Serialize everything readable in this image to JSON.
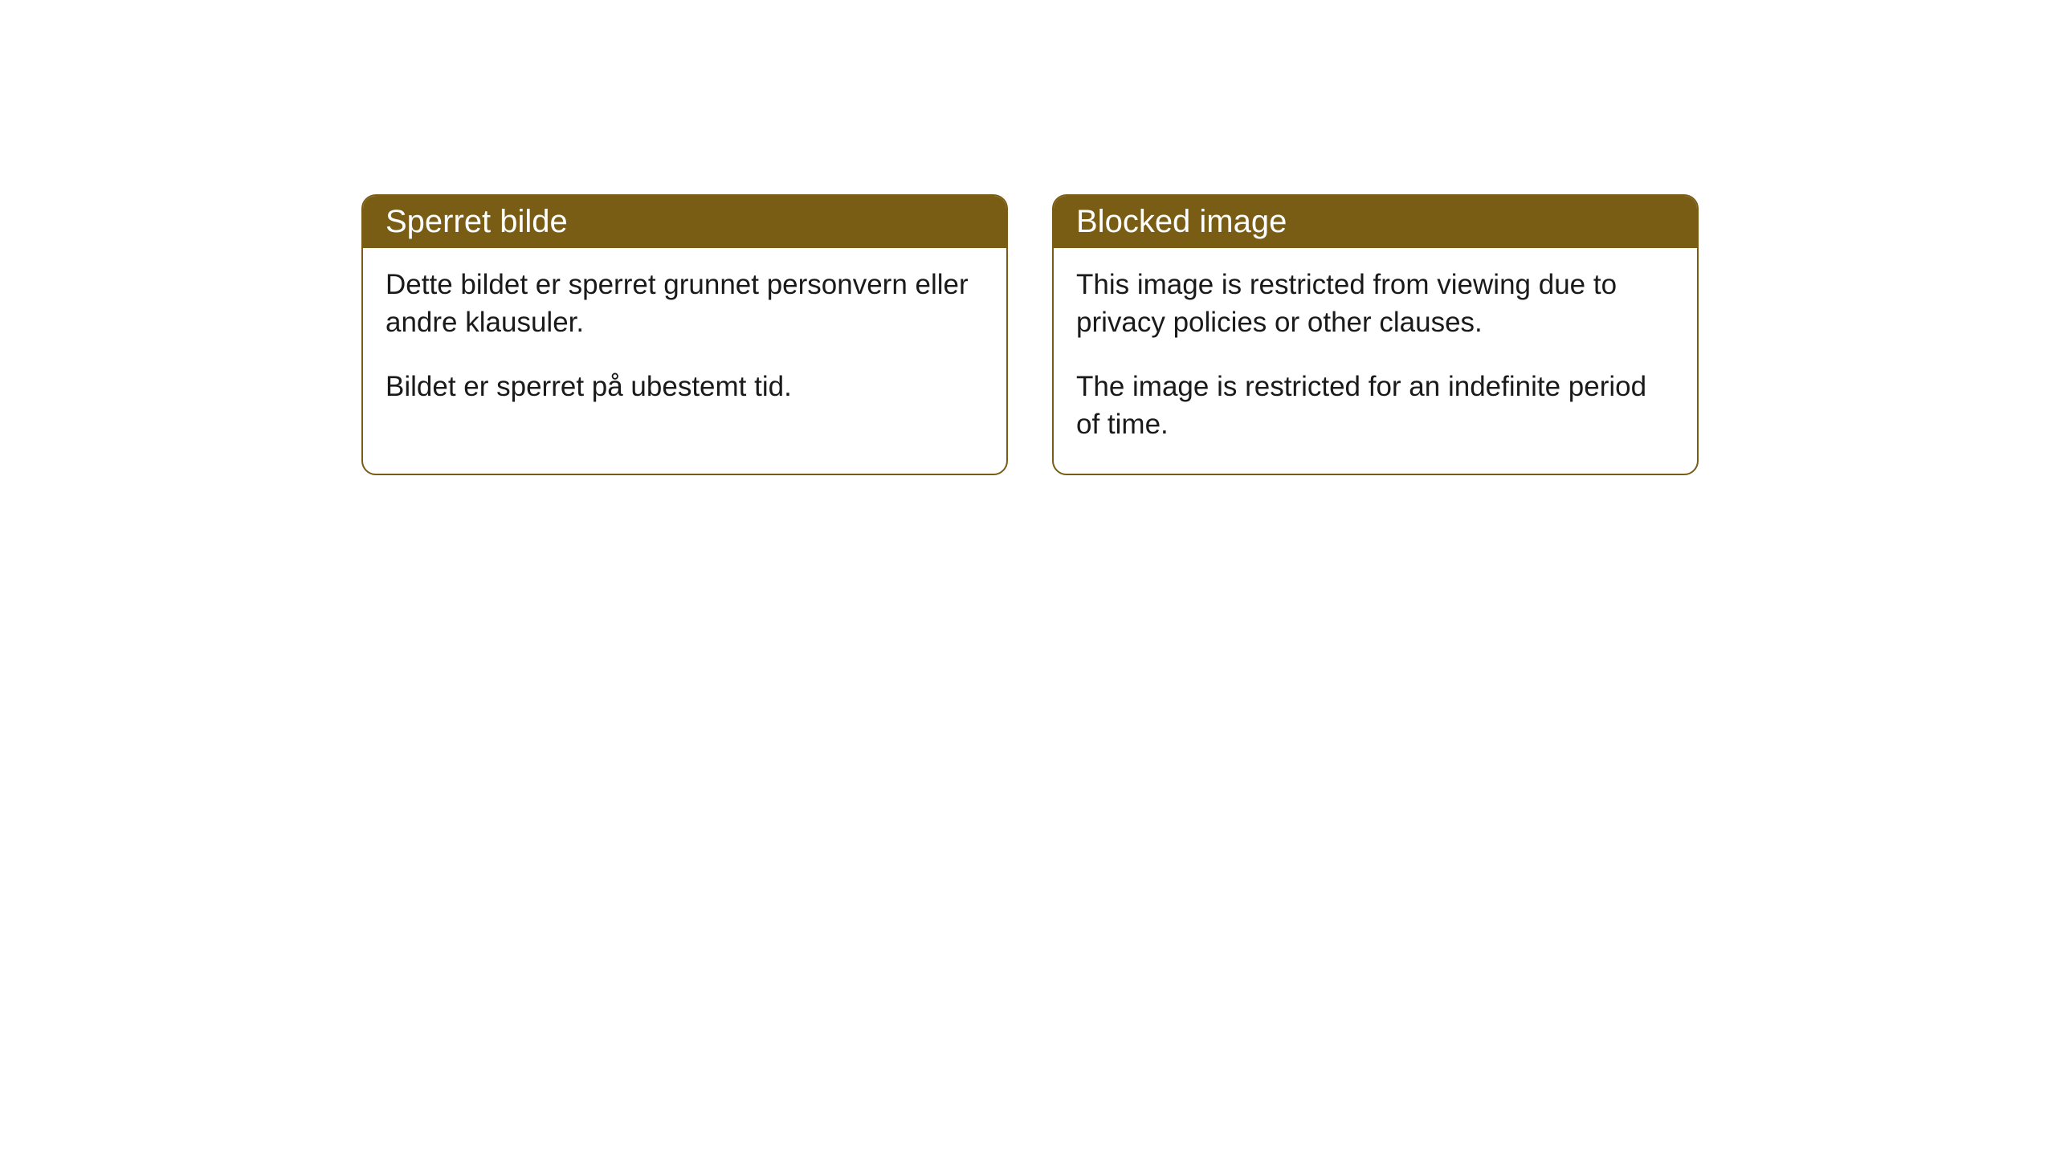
{
  "notices": {
    "norwegian": {
      "title": "Sperret bilde",
      "paragraph1": "Dette bildet er sperret grunnet personvern eller andre klausuler.",
      "paragraph2": "Bildet er sperret på ubestemt tid."
    },
    "english": {
      "title": "Blocked image",
      "paragraph1": "This image is restricted from viewing due to privacy policies or other clauses.",
      "paragraph2": "The image is restricted for an indefinite period of time."
    }
  },
  "styling": {
    "header_background": "#7a5d14",
    "header_text_color": "#ffffff",
    "border_color": "#7a5d14",
    "body_text_color": "#1a1a1a",
    "body_background": "#ffffff",
    "border_radius": 18,
    "header_fontsize": 40,
    "body_fontsize": 35
  }
}
